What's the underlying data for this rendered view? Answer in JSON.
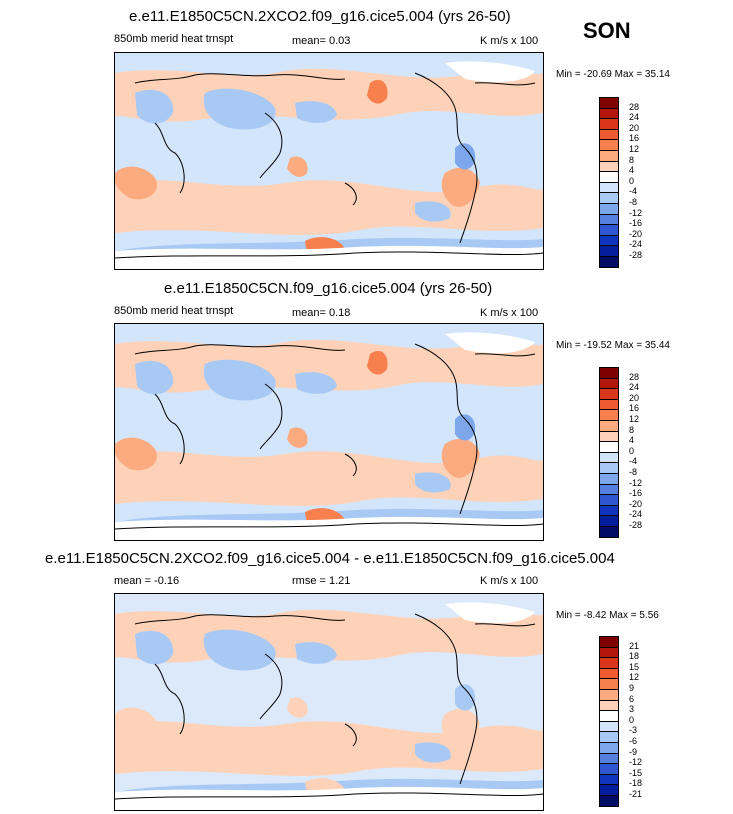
{
  "season": "SON",
  "panels": [
    {
      "title": "e.e11.E1850C5CN.2XCO2.f09_g16.cice5.004 (yrs 26-50)",
      "left_label": "850mb merid heat trnspt",
      "center_label": "mean=  0.03",
      "right_label": "K m/s x 100",
      "minmax": "Min = -20.69 Max =  35.14",
      "colorbar_labels": [
        "28",
        "24",
        "20",
        "16",
        "12",
        "8",
        "4",
        "0",
        "-4",
        "-8",
        "-12",
        "-16",
        "-20",
        "-24",
        "-28"
      ]
    },
    {
      "title": "e.e11.E1850C5CN.f09_g16.cice5.004 (yrs 26-50)",
      "left_label": "850mb merid heat trnspt",
      "center_label": "mean=  0.18",
      "right_label": "K m/s x 100",
      "minmax": "Min = -19.52 Max =  35.44",
      "colorbar_labels": [
        "28",
        "24",
        "20",
        "16",
        "12",
        "8",
        "4",
        "0",
        "-4",
        "-8",
        "-12",
        "-16",
        "-20",
        "-24",
        "-28"
      ]
    },
    {
      "title": "e.e11.E1850C5CN.2XCO2.f09_g16.cice5.004 - e.e11.E1850C5CN.f09_g16.cice5.004",
      "left_label": "mean = -0.16",
      "center_label": "rmse =  1.21",
      "right_label": "K m/s x 100",
      "minmax": "Min = -8.42 Max =  5.56",
      "colorbar_labels": [
        "21",
        "18",
        "15",
        "12",
        "9",
        "6",
        "3",
        "0",
        "-3",
        "-6",
        "-9",
        "-12",
        "-15",
        "-18",
        "-21"
      ]
    }
  ],
  "colors": {
    "palette": [
      "#7f0000",
      "#b3170b",
      "#d9361c",
      "#ef5a30",
      "#f8804f",
      "#fcaa80",
      "#fdd2b8",
      "#ffffff",
      "#d2e5fb",
      "#a9c9f5",
      "#7ea6eb",
      "#5580e0",
      "#2f57d3",
      "#1034bd",
      "#041d9c",
      "#000c66"
    ],
    "coast": "#000000"
  }
}
